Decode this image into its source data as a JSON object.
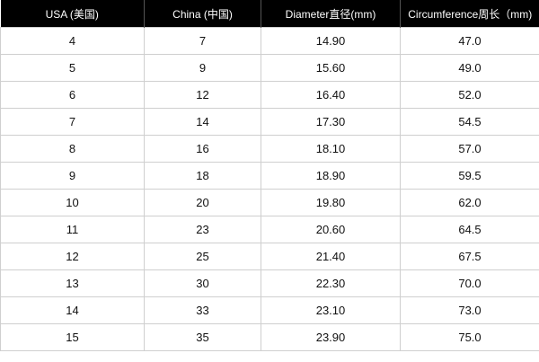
{
  "table": {
    "header": [
      "USA (美国)",
      "China (中国)",
      "Diameter直径(mm)",
      "Circumference周长（mm)"
    ],
    "rows": [
      [
        "4",
        "7",
        "14.90",
        "47.0"
      ],
      [
        "5",
        "9",
        "15.60",
        "49.0"
      ],
      [
        "6",
        "12",
        "16.40",
        "52.0"
      ],
      [
        "7",
        "14",
        "17.30",
        "54.5"
      ],
      [
        "8",
        "16",
        "18.10",
        "57.0"
      ],
      [
        "9",
        "18",
        "18.90",
        "59.5"
      ],
      [
        "10",
        "20",
        "19.80",
        "62.0"
      ],
      [
        "11",
        "23",
        "20.60",
        "64.5"
      ],
      [
        "12",
        "25",
        "21.40",
        "67.5"
      ],
      [
        "13",
        "30",
        "22.30",
        "70.0"
      ],
      [
        "14",
        "33",
        "23.10",
        "73.0"
      ],
      [
        "15",
        "35",
        "23.90",
        "75.0"
      ]
    ]
  }
}
